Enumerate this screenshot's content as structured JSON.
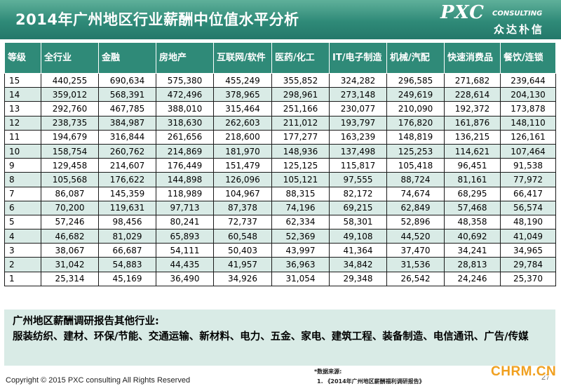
{
  "title": "2014年广州地区行业薪酬中位值水平分析",
  "brand": {
    "logo": "PXC",
    "sub": "CONSULTING",
    "cn": "众达朴信"
  },
  "table": {
    "headers": [
      "等级",
      "全行业",
      "金融",
      "房地产",
      "互联网/软件",
      "医药/化工",
      "IT/电子制造",
      "机械/汽配",
      "快速消费品",
      "餐饮/连锁"
    ],
    "rows": [
      [
        "15",
        "440,255",
        "690,634",
        "575,380",
        "455,249",
        "355,852",
        "324,282",
        "296,585",
        "271,682",
        "239,644"
      ],
      [
        "14",
        "359,012",
        "568,391",
        "472,496",
        "378,965",
        "298,961",
        "273,148",
        "249,619",
        "228,614",
        "204,130"
      ],
      [
        "13",
        "292,760",
        "467,785",
        "388,010",
        "315,464",
        "251,166",
        "230,077",
        "210,090",
        "192,372",
        "173,878"
      ],
      [
        "12",
        "238,735",
        "384,987",
        "318,630",
        "262,603",
        "211,012",
        "193,797",
        "176,820",
        "161,876",
        "148,110"
      ],
      [
        "11",
        "194,679",
        "316,844",
        "261,656",
        "218,600",
        "177,277",
        "163,239",
        "148,819",
        "136,215",
        "126,161"
      ],
      [
        "10",
        "158,754",
        "260,762",
        "214,869",
        "181,970",
        "148,936",
        "137,498",
        "125,253",
        "114,621",
        "107,464"
      ],
      [
        "9",
        "129,458",
        "214,607",
        "176,449",
        "151,479",
        "125,125",
        "115,817",
        "105,418",
        "96,451",
        "91,538"
      ],
      [
        "8",
        "105,568",
        "176,622",
        "144,898",
        "126,096",
        "105,121",
        "97,555",
        "88,724",
        "81,161",
        "77,972"
      ],
      [
        "7",
        "86,087",
        "145,359",
        "118,989",
        "104,967",
        "88,315",
        "82,172",
        "74,674",
        "68,295",
        "66,417"
      ],
      [
        "6",
        "70,200",
        "119,631",
        "97,713",
        "87,378",
        "74,196",
        "69,215",
        "62,849",
        "57,468",
        "56,574"
      ],
      [
        "5",
        "57,246",
        "98,456",
        "80,241",
        "72,737",
        "62,334",
        "58,301",
        "52,896",
        "48,358",
        "48,190"
      ],
      [
        "4",
        "46,682",
        "81,029",
        "65,893",
        "60,548",
        "52,369",
        "49,108",
        "44,520",
        "40,692",
        "41,049"
      ],
      [
        "3",
        "38,067",
        "66,687",
        "54,111",
        "50,403",
        "43,997",
        "41,364",
        "37,470",
        "34,241",
        "34,965"
      ],
      [
        "2",
        "31,042",
        "54,883",
        "44,435",
        "41,957",
        "36,963",
        "34,842",
        "31,536",
        "28,813",
        "29,784"
      ],
      [
        "1",
        "25,314",
        "45,169",
        "36,490",
        "34,926",
        "31,054",
        "29,348",
        "26,542",
        "24,246",
        "25,370"
      ]
    ]
  },
  "other_industries": {
    "title": "广州地区薪酬调研报告其他行业:",
    "list": "服装纺织、建材、环保/节能、交通运输、新材料、电力、五金、家电、建筑工程、装备制造、电信通讯、广告/传媒"
  },
  "footer": {
    "copyright": "Copyright © 2015 PXC consulting All Rights Reserved",
    "source_label": "*数据来源:",
    "source_item": "1.    《2014年广州地区薪酬福利调研报告》",
    "page_number": "27",
    "watermark": "CHRM.CN"
  },
  "colors": {
    "header_bg": "#2f8a78",
    "stripe_bg": "#d9ebe6",
    "watermark": "#f0a020"
  }
}
